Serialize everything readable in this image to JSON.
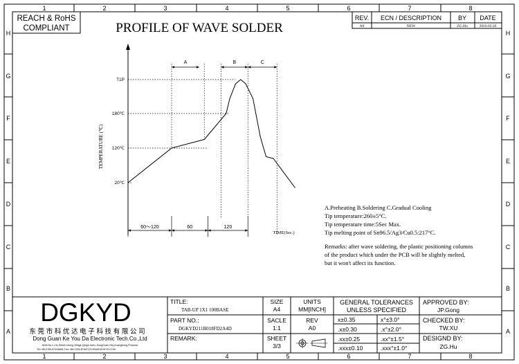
{
  "grid": {
    "columns": [
      "1",
      "2",
      "3",
      "4",
      "5",
      "6",
      "7",
      "8"
    ],
    "rows": [
      "H",
      "G",
      "F",
      "E",
      "D",
      "C",
      "B",
      "A"
    ]
  },
  "compliance": {
    "line1": "REACH & RoHS",
    "line2": "COMPLIANT"
  },
  "drawing_title": "PROFILE OF WAVE SOLDER",
  "revision_table": {
    "headers": [
      "REV.",
      "ECN / DESCRIPTION",
      "BY",
      "DATE"
    ],
    "row": [
      "A0",
      "NEW",
      "ZG.Hu",
      "2016.02.26"
    ]
  },
  "chart_data": {
    "type": "line",
    "title": "",
    "ylabel": "TEMPERATURE (℃)",
    "xlabel": "TIME(Sec.)",
    "y_ticks": [
      "T1P",
      "180℃",
      "120℃",
      "20℃"
    ],
    "phase_labels": [
      "A",
      "B",
      "C"
    ],
    "duration_labels": [
      "60～120",
      "60",
      "120"
    ],
    "x": [
      0,
      60,
      105,
      135,
      140,
      148,
      155,
      162,
      172,
      182,
      190,
      200,
      230
    ],
    "y": [
      20,
      120,
      135,
      180,
      215,
      250,
      260,
      250,
      215,
      140,
      95,
      90,
      5
    ],
    "series": [
      {
        "name": ""
      }
    ]
  },
  "notes": {
    "legend_line": "A.Preheating  B.Soldering  C.Gradual Cooling",
    "lines": [
      "Tip temperature:260±5°C.",
      "Tip temperature time:5Sec Max.",
      "Tip melting point of Sn96.5/Ag3/Cu0.5:217°C."
    ],
    "remarks": [
      "Remarks: after wave soldering, the plastic positioning columns",
      "of the product  which under the PCB will be slightly melted,",
      "but it won't affect its function."
    ]
  },
  "title_block": {
    "logo": "DGKYD",
    "company_cn": "东 莞 市 科 优 达 电 子 科 技 有 限 公 司",
    "company_en": "Dong Guan Ke You Da Electronic Tech.Co.,Ltd",
    "address": "ADD:No.1 Lifu Street,Liheng Village,Qingxi town, DongGuan City,GuangDong Province",
    "contact": "Tel:+86-0769-87334608; Fax:+86-0769-87847129  WWW.DGKYD.COM",
    "title_label": "TITLE:",
    "title_value": "TAB-UP 1X1 100BASE",
    "part_label": "PART NO.:",
    "part_value": "DGKYD211B018FD2A4D",
    "remark_label": "REMARK:",
    "size_label": "SIZE",
    "size_value": "A4",
    "units_label": "UNITS",
    "units_value": "MM[INCH]",
    "scale_label": "SACLE",
    "scale_value": "1:1",
    "rev_label": "REV",
    "rev_value": "A0",
    "sheet_label": "SHEET",
    "sheet_value": "3/3",
    "tol_header1": "GENERAL TOLERANCES",
    "tol_header2": "UNLESS SPECIFIED",
    "tolerances": [
      [
        "x±0.35",
        "x°±3.0°"
      ],
      [
        ".x±0.30",
        ".x°±2.0°"
      ],
      [
        ".xx±0.25",
        ".xx°±1.5°"
      ],
      [
        ".xxx±0.10",
        ".xxx°±1.0°"
      ]
    ],
    "approved_label": "APPROVED BY:",
    "approved_value": "JP.Gong",
    "checked_label": "CHECKED BY:",
    "checked_value": "TW.XU",
    "designed_label": "DESIGND BY:",
    "designed_value": "ZG.Hu"
  }
}
